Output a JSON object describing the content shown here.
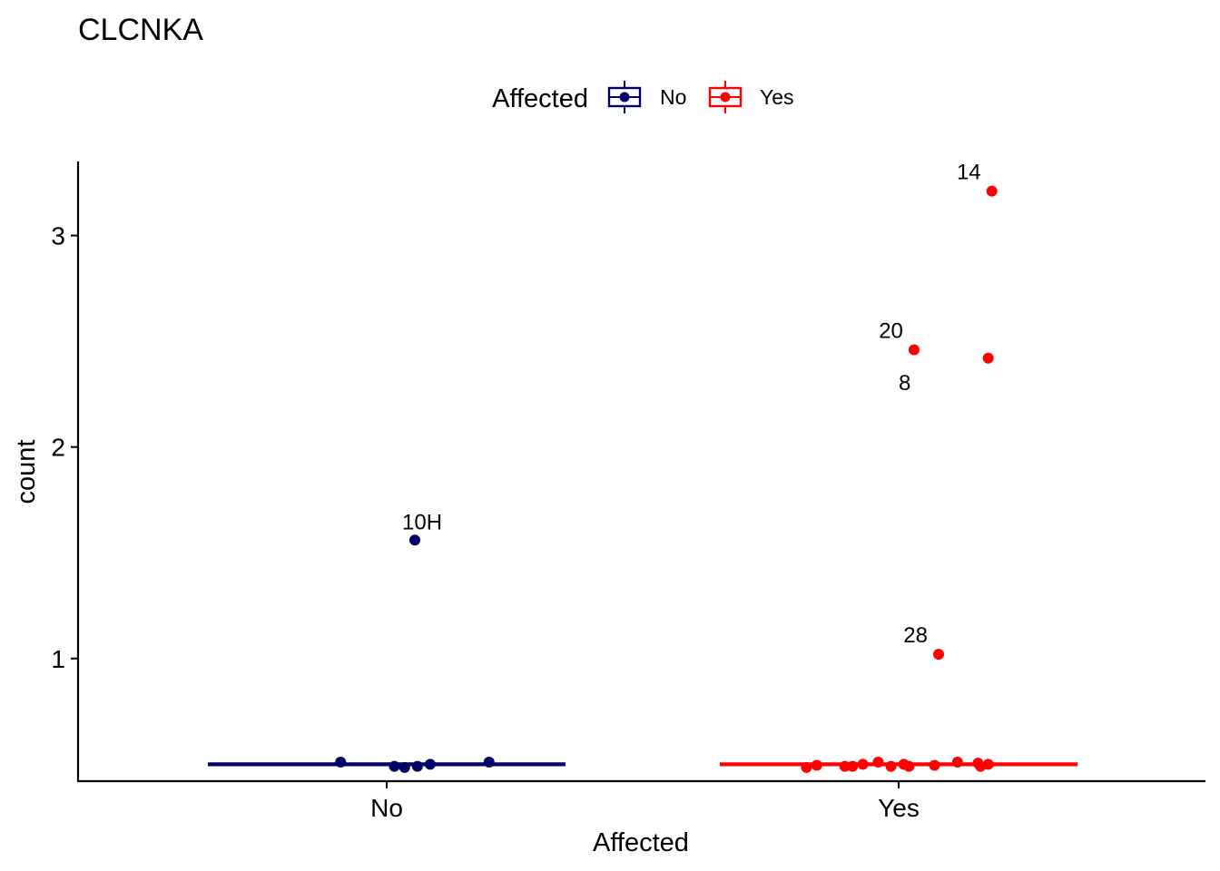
{
  "chart_data": {
    "type": "box-jitter",
    "title": "CLCNKA",
    "xlabel": "Affected",
    "ylabel": "count",
    "categories": [
      "No",
      "Yes"
    ],
    "ylim": [
      0.42,
      3.35
    ],
    "yticks": [
      1,
      2,
      3
    ],
    "grid": false,
    "legend": {
      "title": "Affected",
      "position": "top",
      "entries": [
        {
          "label": "No",
          "color": "#000066"
        },
        {
          "label": "Yes",
          "color": "#FF0000"
        }
      ]
    },
    "series": [
      {
        "category": "No",
        "color": "#000066",
        "median": 0.5,
        "points": [
          {
            "x": -0.09,
            "y": 0.51
          },
          {
            "x": 0.015,
            "y": 0.49
          },
          {
            "x": 0.035,
            "y": 0.485
          },
          {
            "x": 0.06,
            "y": 0.49
          },
          {
            "x": 0.085,
            "y": 0.5
          },
          {
            "x": 0.2,
            "y": 0.51
          },
          {
            "x": 0.055,
            "y": 1.56,
            "label": "10H"
          }
        ]
      },
      {
        "category": "Yes",
        "color": "#FF0000",
        "median": 0.5,
        "points": [
          {
            "x": -0.18,
            "y": 0.485
          },
          {
            "x": -0.16,
            "y": 0.495
          },
          {
            "x": -0.105,
            "y": 0.49
          },
          {
            "x": -0.09,
            "y": 0.49
          },
          {
            "x": -0.07,
            "y": 0.5
          },
          {
            "x": -0.04,
            "y": 0.51
          },
          {
            "x": -0.015,
            "y": 0.49
          },
          {
            "x": 0.01,
            "y": 0.5
          },
          {
            "x": 0.02,
            "y": 0.49
          },
          {
            "x": 0.07,
            "y": 0.495
          },
          {
            "x": 0.115,
            "y": 0.51
          },
          {
            "x": 0.155,
            "y": 0.505
          },
          {
            "x": 0.16,
            "y": 0.49
          },
          {
            "x": 0.175,
            "y": 0.5
          },
          {
            "x": 0.182,
            "y": 3.21,
            "label": "14",
            "label_side": "left"
          },
          {
            "x": 0.03,
            "y": 2.46,
            "label": "20",
            "label_side": "left"
          },
          {
            "x": 0.175,
            "y": 2.42,
            "label": "8",
            "label_side": "below-left"
          },
          {
            "x": 0.078,
            "y": 1.02,
            "label": "28",
            "label_side": "left"
          }
        ]
      }
    ]
  }
}
